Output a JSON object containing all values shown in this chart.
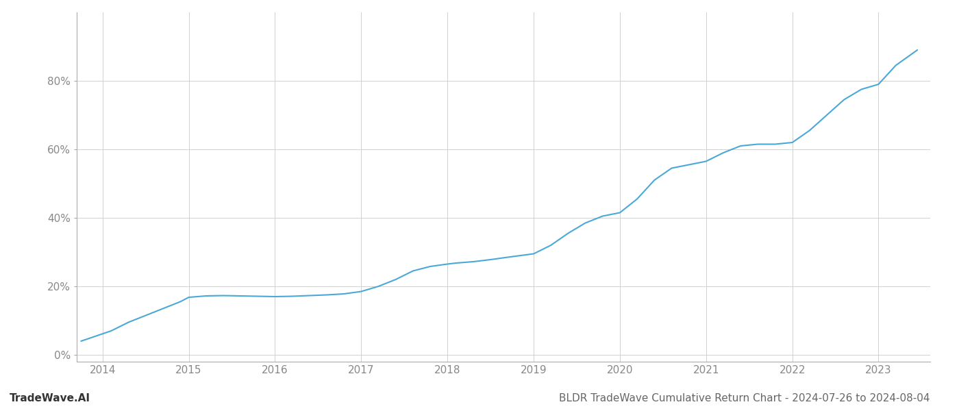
{
  "title": "BLDR TradeWave Cumulative Return Chart - 2024-07-26 to 2024-08-04",
  "watermark": "TradeWave.AI",
  "line_color": "#4aa8d8",
  "background_color": "#ffffff",
  "grid_color": "#d0d0d0",
  "x_years": [
    2014,
    2015,
    2016,
    2017,
    2018,
    2019,
    2020,
    2021,
    2022,
    2023
  ],
  "x_data": [
    2013.75,
    2014.1,
    2014.3,
    2014.5,
    2014.7,
    2014.9,
    2015.0,
    2015.1,
    2015.2,
    2015.4,
    2015.6,
    2015.8,
    2016.0,
    2016.2,
    2016.4,
    2016.6,
    2016.8,
    2017.0,
    2017.2,
    2017.4,
    2017.6,
    2017.8,
    2018.0,
    2018.1,
    2018.3,
    2018.5,
    2018.7,
    2019.0,
    2019.2,
    2019.4,
    2019.6,
    2019.8,
    2020.0,
    2020.2,
    2020.4,
    2020.6,
    2020.8,
    2021.0,
    2021.2,
    2021.4,
    2021.6,
    2021.8,
    2022.0,
    2022.2,
    2022.4,
    2022.6,
    2022.8,
    2023.0,
    2023.2,
    2023.45
  ],
  "y_data": [
    0.04,
    0.07,
    0.095,
    0.115,
    0.135,
    0.155,
    0.168,
    0.17,
    0.172,
    0.173,
    0.172,
    0.171,
    0.17,
    0.171,
    0.173,
    0.175,
    0.178,
    0.185,
    0.2,
    0.22,
    0.245,
    0.258,
    0.265,
    0.268,
    0.272,
    0.278,
    0.285,
    0.295,
    0.32,
    0.355,
    0.385,
    0.405,
    0.415,
    0.455,
    0.51,
    0.545,
    0.555,
    0.565,
    0.59,
    0.61,
    0.615,
    0.615,
    0.62,
    0.655,
    0.7,
    0.745,
    0.775,
    0.79,
    0.845,
    0.89
  ],
  "ylim": [
    -0.02,
    1.0
  ],
  "xlim": [
    2013.7,
    2023.6
  ],
  "yticks": [
    0.0,
    0.2,
    0.4,
    0.6,
    0.8
  ],
  "ytick_labels": [
    "0%",
    "20%",
    "40%",
    "60%",
    "80%"
  ],
  "line_width": 1.5,
  "title_fontsize": 11,
  "tick_fontsize": 11,
  "watermark_fontsize": 11
}
